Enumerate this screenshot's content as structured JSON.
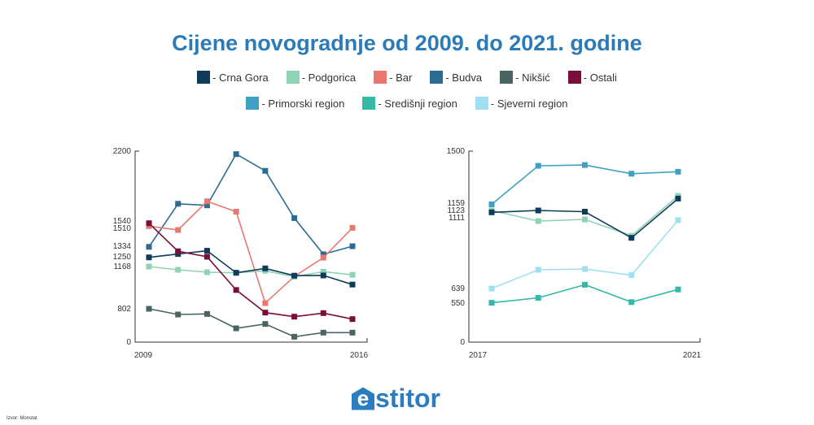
{
  "chart_data": [
    {
      "type": "line",
      "title": "Cijene novogradnje od 2009. do 2021. godine",
      "x": [
        2009,
        2010,
        2011,
        2012,
        2013,
        2014,
        2015,
        2016
      ],
      "x_tick_labels": [
        "2009",
        "2016"
      ],
      "y_ticks": [
        0,
        802,
        1168,
        1250,
        1334,
        1510,
        1540,
        2200
      ],
      "y_tick_labels": [
        "0",
        "802",
        "1168",
        "1250",
        "1334",
        "1510",
        "1540",
        "2200"
      ],
      "ylim": [
        0,
        2200
      ],
      "grid": false,
      "series": [
        {
          "name": "Budva",
          "color": "#2d6c92",
          "values": [
            1329,
            1703,
            1688,
            2172,
            2014,
            1568,
            1270,
            1334
          ]
        },
        {
          "name": "Bar",
          "color": "#e8786f",
          "values": [
            1519,
            1494,
            1726,
            1628,
            851,
            1082,
            1243,
            1512
          ]
        },
        {
          "name": "Podgorica",
          "color": "#8fd3b5",
          "values": [
            1168,
            1140,
            1119,
            1114,
            1131,
            1080,
            1124,
            1096
          ]
        },
        {
          "name": "Crna Gora",
          "color": "#0d3b5a",
          "values": [
            1245,
            1272,
            1298,
            1114,
            1152,
            1089,
            1091,
            1012
          ]
        },
        {
          "name": "Ostali",
          "color": "#7a0d3a",
          "values": [
            1531,
            1294,
            1250,
            965,
            711,
            613,
            698,
            554
          ]
        },
        {
          "name": "Nikšić",
          "color": "#4a6463",
          "values": [
            802,
            665,
            678,
            332,
            437,
            130,
            228,
            228
          ]
        }
      ]
    },
    {
      "type": "line",
      "x": [
        2017,
        2018,
        2019,
        2020,
        2021
      ],
      "x_tick_labels": [
        "2017",
        "2021"
      ],
      "y_ticks": [
        0,
        550,
        639,
        1111,
        1123,
        1159,
        1500
      ],
      "y_tick_labels": [
        "0",
        "550",
        "639",
        "1111",
        "1123",
        "1159",
        "1500"
      ],
      "ylim": [
        0,
        1500
      ],
      "grid": false,
      "series": [
        {
          "name": "Primorski region",
          "color": "#3f9fc4",
          "values": [
            1153,
            1404,
            1409,
            1352,
            1365
          ]
        },
        {
          "name": "Podgorica",
          "color": "#8fd3b5",
          "values": [
            1123,
            1089,
            1100,
            991,
            1207
          ]
        },
        {
          "name": "Crna Gora",
          "color": "#0d3b5a",
          "values": [
            1120,
            1123,
            1121,
            977,
            1189
          ]
        },
        {
          "name": "Sjeverni region",
          "color": "#9ee0f2",
          "values": [
            639,
            764,
            769,
            728,
            1095
          ]
        },
        {
          "name": "Središnji region",
          "color": "#35b8a5",
          "values": [
            552,
            582,
            664,
            556,
            633
          ]
        }
      ]
    }
  ],
  "title": "Cijene novogradnje od 2009. do 2021. godine",
  "legend": {
    "row1": [
      {
        "label": "- Crna Gora",
        "color": "#0d3b5a"
      },
      {
        "label": "- Podgorica",
        "color": "#8fd3b5"
      },
      {
        "label": "- Bar",
        "color": "#e8786f"
      },
      {
        "label": "- Budva",
        "color": "#2d6c92"
      },
      {
        "label": "- Nikšić",
        "color": "#4a6463"
      },
      {
        "label": "- Ostali",
        "color": "#7a0d3a"
      }
    ],
    "row2": [
      {
        "label": "- Primorski region",
        "color": "#3f9fc4"
      },
      {
        "label": "- Središnji region",
        "color": "#35b8a5"
      },
      {
        "label": "- Sjeverni region",
        "color": "#9ee0f2"
      }
    ]
  },
  "source": "Izvor: Monstat",
  "logo": {
    "e": "e",
    "rest": "stitor"
  }
}
